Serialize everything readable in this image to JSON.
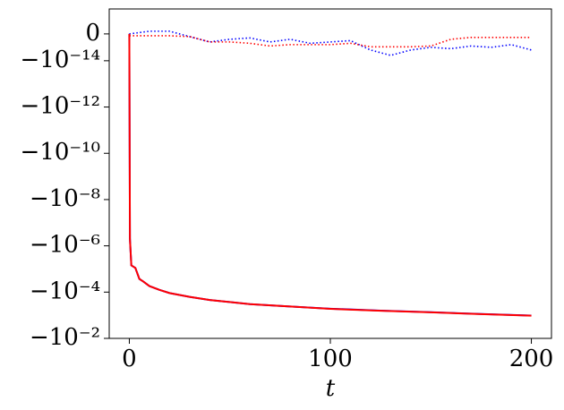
{
  "chart_data": {
    "type": "line",
    "xlabel": "t",
    "yscale": "symlog",
    "linthresh": 1e-14,
    "linscale": 1.16,
    "xlim": [
      -10,
      210
    ],
    "xticks": [
      0,
      100,
      200
    ],
    "ylim": [
      9.3e-15,
      -0.01
    ],
    "yticks": [
      0,
      {
        "value": -1e-14,
        "label": "−10⁻¹⁴"
      },
      {
        "value": -1e-12,
        "label": "−10⁻¹²"
      },
      {
        "value": -1e-10,
        "label": "−10⁻¹⁰"
      },
      {
        "value": -1e-08,
        "label": "−10⁻⁸"
      },
      {
        "value": -1e-06,
        "label": "−10⁻⁶"
      },
      {
        "value": -0.0001,
        "label": "−10⁻⁴"
      },
      {
        "value": -0.01,
        "label": "−10⁻²"
      }
    ],
    "series": [
      {
        "color": "#0000ff",
        "style": "dotted",
        "x": [
          0,
          10,
          20,
          30,
          40,
          50,
          60,
          70,
          80,
          90,
          100,
          110,
          120,
          130,
          140,
          150,
          160,
          170,
          180,
          190,
          200
        ],
        "values": [
          0,
          1e-15,
          1e-15,
          -1e-15,
          -3e-15,
          -2e-15,
          -1.5e-15,
          -3e-15,
          -2e-15,
          -3.5e-15,
          -3e-15,
          -2.5e-15,
          -6e-15,
          -8e-15,
          -6e-15,
          -5e-15,
          -5.5e-15,
          -4.5e-15,
          -5e-15,
          -4e-15,
          -6e-15
        ]
      },
      {
        "color": "#ff0000",
        "style": "dotted",
        "x": [
          0,
          10,
          20,
          30,
          40,
          50,
          60,
          70,
          80,
          90,
          100,
          110,
          120,
          130,
          140,
          150,
          160,
          170,
          180,
          190,
          200
        ],
        "values": [
          -7e-16,
          -7e-16,
          -7e-16,
          -1e-15,
          -3e-15,
          -3e-15,
          -3.5e-15,
          -4.5e-15,
          -4e-15,
          -4e-15,
          -4e-15,
          -3.5e-15,
          -4.8e-15,
          -4.8e-15,
          -4.8e-15,
          -4.5e-15,
          -2e-15,
          -1.3e-15,
          -1.3e-15,
          -1.3e-15,
          -1.3e-15
        ]
      },
      {
        "color": "#0000ff",
        "style": "solid",
        "x": [
          0,
          0.3,
          1,
          3,
          5,
          7,
          10,
          15,
          20,
          30,
          40,
          60,
          80,
          100,
          125,
          150,
          175,
          200
        ],
        "values": [
          0,
          -5e-07,
          -7e-06,
          -9e-06,
          -2.7e-05,
          -3.5e-05,
          -5.5e-05,
          -8e-05,
          -0.00011,
          -0.00016,
          -0.00022,
          -0.00033,
          -0.00042,
          -0.00052,
          -0.00063,
          -0.00074,
          -0.00088,
          -0.00103
        ]
      },
      {
        "color": "#ff0000",
        "style": "solid",
        "x": [
          0,
          0.3,
          1,
          3,
          5,
          7,
          10,
          15,
          20,
          30,
          40,
          60,
          80,
          100,
          125,
          150,
          175,
          200
        ],
        "values": [
          0,
          -5e-07,
          -7e-06,
          -9e-06,
          -2.7e-05,
          -3.5e-05,
          -5.5e-05,
          -8e-05,
          -0.00011,
          -0.00016,
          -0.00022,
          -0.00033,
          -0.00042,
          -0.00053,
          -0.00064,
          -0.00075,
          -0.00089,
          -0.00104
        ]
      }
    ]
  }
}
